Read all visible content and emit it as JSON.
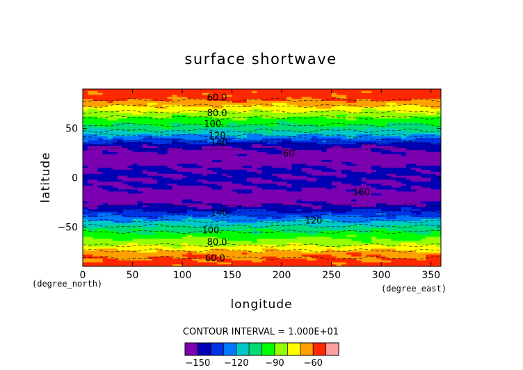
{
  "chart_data": {
    "type": "heatmap",
    "title": "surface shortwave",
    "xlabel": "longitude",
    "ylabel": "latitude",
    "x_unit_label": "(degree_east)",
    "y_unit_label": "(degree_north)",
    "xlim": [
      0,
      360
    ],
    "ylim": [
      -90,
      90
    ],
    "x_ticks": [
      0,
      50,
      100,
      150,
      200,
      250,
      300,
      350
    ],
    "y_ticks": [
      -50,
      0,
      50
    ],
    "contour_interval_label": "CONTOUR INTERVAL = 1.000E+01",
    "contour_interval": 10,
    "levels": [
      -160,
      -150,
      -140,
      -130,
      -120,
      -110,
      -100,
      -90,
      -80,
      -70,
      -60,
      -50
    ],
    "colorbar_ticks": [
      -150,
      -120,
      -90,
      -60
    ],
    "colorbar_colors": [
      "#7a00b0",
      "#0000b4",
      "#0032e6",
      "#0078ff",
      "#00c8c8",
      "#00dc78",
      "#00ff00",
      "#96ff00",
      "#ffff00",
      "#ffa000",
      "#ff2800",
      "#ffa0a0"
    ],
    "zonal_profile": [
      {
        "lat": 90,
        "value": -55
      },
      {
        "lat": 80,
        "value": -58
      },
      {
        "lat": 76,
        "value": -65
      },
      {
        "lat": 68,
        "value": -78
      },
      {
        "lat": 60,
        "value": -92
      },
      {
        "lat": 52,
        "value": -102
      },
      {
        "lat": 45,
        "value": -115
      },
      {
        "lat": 38,
        "value": -132
      },
      {
        "lat": 32,
        "value": -148
      },
      {
        "lat": 20,
        "value": -158
      },
      {
        "lat": 10,
        "value": -150
      },
      {
        "lat": 0,
        "value": -148
      },
      {
        "lat": -10,
        "value": -150
      },
      {
        "lat": -20,
        "value": -158
      },
      {
        "lat": -30,
        "value": -148
      },
      {
        "lat": -38,
        "value": -132
      },
      {
        "lat": -45,
        "value": -118
      },
      {
        "lat": -52,
        "value": -104
      },
      {
        "lat": -62,
        "value": -90
      },
      {
        "lat": -70,
        "value": -78
      },
      {
        "lat": -78,
        "value": -62
      },
      {
        "lat": -90,
        "value": -55
      }
    ],
    "contour_labels": [
      {
        "text": "60.0",
        "lon": 135,
        "lat": 82
      },
      {
        "text": "80.0",
        "lon": 135,
        "lat": 66
      },
      {
        "text": "100.",
        "lon": 132,
        "lat": 55
      },
      {
        "text": "120",
        "lon": 135,
        "lat": 43
      },
      {
        "text": "140",
        "lon": 137,
        "lat": 36
      },
      {
        "text": "60",
        "lon": 207,
        "lat": 25
      },
      {
        "text": "160",
        "lon": 280,
        "lat": -14
      },
      {
        "text": "140",
        "lon": 137,
        "lat": -35
      },
      {
        "text": "120",
        "lon": 232,
        "lat": -43
      },
      {
        "text": "100.",
        "lon": 130,
        "lat": -53
      },
      {
        "text": "80.0",
        "lon": 135,
        "lat": -65
      },
      {
        "text": "60.0",
        "lon": 133,
        "lat": -81
      }
    ]
  }
}
